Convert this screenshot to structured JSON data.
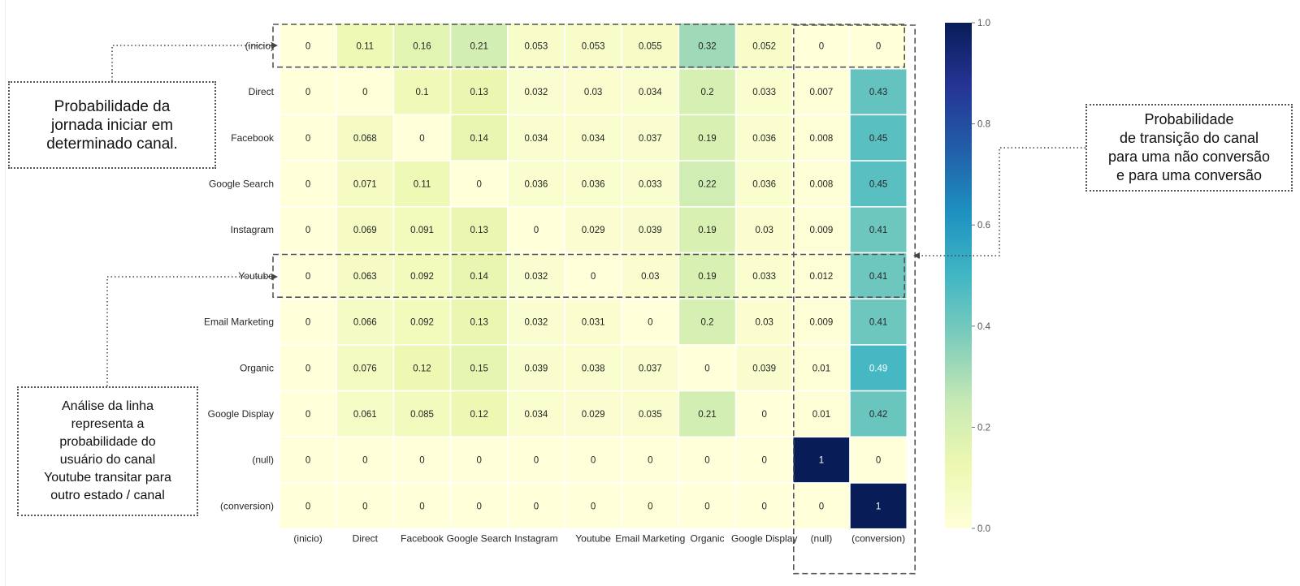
{
  "chart_data": {
    "type": "heatmap",
    "rows": [
      "(inicio)",
      "Direct",
      "Facebook",
      "Google Search",
      "Instagram",
      "Youtube",
      "Email Marketing",
      "Organic",
      "Google Display",
      "(null)",
      "(conversion)"
    ],
    "columns": [
      "(inicio)",
      "Direct",
      "Facebook",
      "Google Search",
      "Instagram",
      "Youtube",
      "Email Marketing",
      "Organic",
      "Google Display",
      "(null)",
      "(conversion)"
    ],
    "values": [
      [
        "0",
        "0.11",
        "0.16",
        "0.21",
        "0.053",
        "0.053",
        "0.055",
        "0.32",
        "0.052",
        "0",
        "0"
      ],
      [
        "0",
        "0",
        "0.1",
        "0.13",
        "0.032",
        "0.03",
        "0.034",
        "0.2",
        "0.033",
        "0.007",
        "0.43"
      ],
      [
        "0",
        "0.068",
        "0",
        "0.14",
        "0.034",
        "0.034",
        "0.037",
        "0.19",
        "0.036",
        "0.008",
        "0.45"
      ],
      [
        "0",
        "0.071",
        "0.11",
        "0",
        "0.036",
        "0.036",
        "0.033",
        "0.22",
        "0.036",
        "0.008",
        "0.45"
      ],
      [
        "0",
        "0.069",
        "0.091",
        "0.13",
        "0",
        "0.029",
        "0.039",
        "0.19",
        "0.03",
        "0.009",
        "0.41"
      ],
      [
        "0",
        "0.063",
        "0.092",
        "0.14",
        "0.032",
        "0",
        "0.03",
        "0.19",
        "0.033",
        "0.012",
        "0.41"
      ],
      [
        "0",
        "0.066",
        "0.092",
        "0.13",
        "0.032",
        "0.031",
        "0",
        "0.2",
        "0.03",
        "0.009",
        "0.41"
      ],
      [
        "0",
        "0.076",
        "0.12",
        "0.15",
        "0.039",
        "0.038",
        "0.037",
        "0",
        "0.039",
        "0.01",
        "0.49"
      ],
      [
        "0",
        "0.061",
        "0.085",
        "0.12",
        "0.034",
        "0.029",
        "0.035",
        "0.21",
        "0",
        "0.01",
        "0.42"
      ],
      [
        "0",
        "0",
        "0",
        "0",
        "0",
        "0",
        "0",
        "0",
        "0",
        "1",
        "0"
      ],
      [
        "0",
        "0",
        "0",
        "0",
        "0",
        "0",
        "0",
        "0",
        "0",
        "0",
        "1"
      ]
    ],
    "colorbar": {
      "min": 0,
      "max": 1,
      "ticks": [
        "0.0",
        "0.2",
        "0.4",
        "0.6",
        "0.8",
        "1.0"
      ],
      "colormap": "YlGnBu"
    },
    "highlights": {
      "rows": [
        "(inicio)",
        "Youtube"
      ],
      "columns": [
        "(null)",
        "(conversion)"
      ]
    }
  },
  "annotations": {
    "start": "Probabilidade da\njornada iniciar em\ndeterminado canal.",
    "row": "Análise da linha\nrepresenta a\nprobabilidade do\nusuário do canal\nYoutube transitar para\noutro estado / canal",
    "conversion": "Probabilidade\nde transição do canal\npara uma não conversão\ne para uma conversão"
  }
}
